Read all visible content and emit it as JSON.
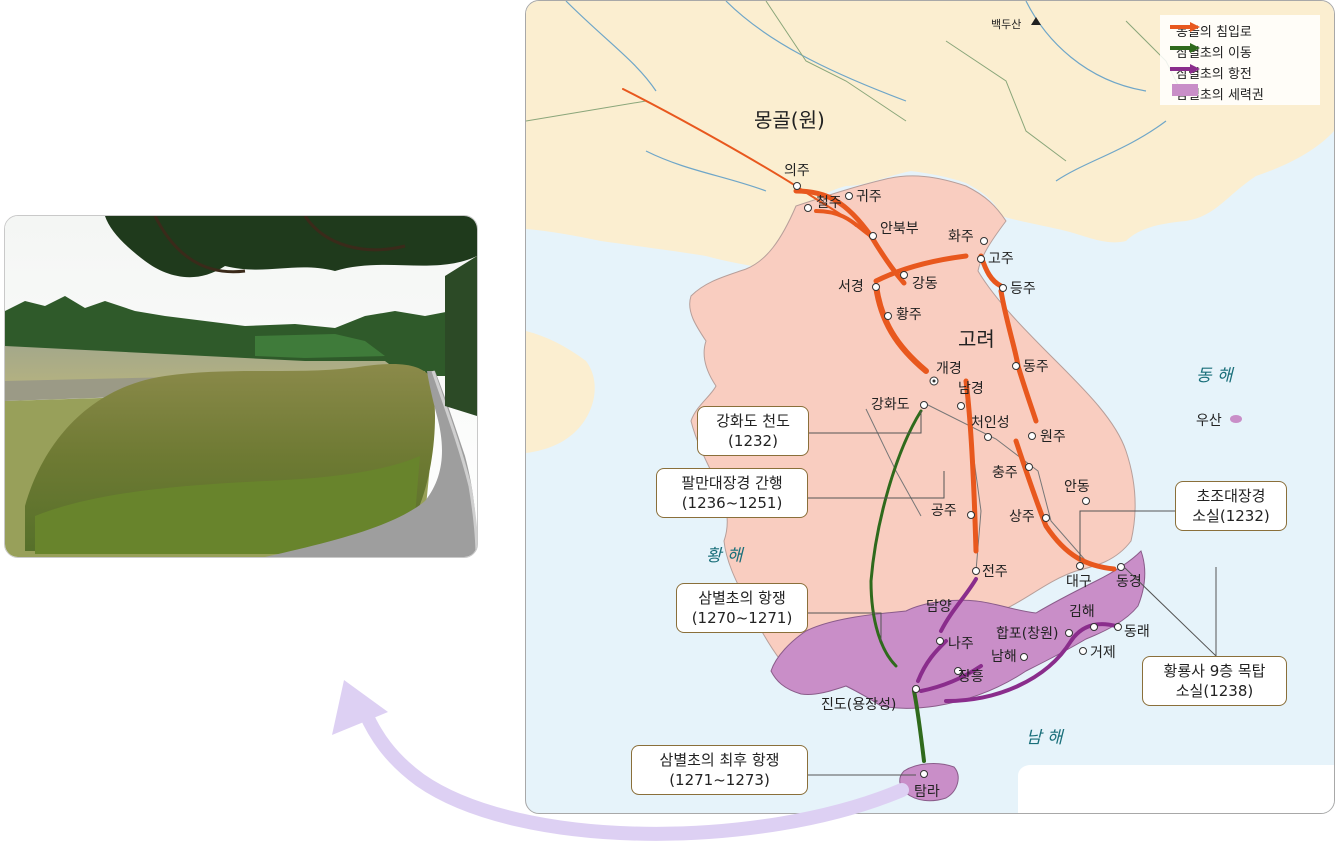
{
  "legend": {
    "items": [
      {
        "label": "몽골의 침입로",
        "color": "#e8581e"
      },
      {
        "label": "삼별초의 이동",
        "color": "#2f6a1c"
      },
      {
        "label": "삼별초의 항전",
        "color": "#8a2d8c"
      },
      {
        "label": "삼별초의 세력권",
        "color": "#c98ec8"
      }
    ]
  },
  "regions": {
    "mongol": "몽골(원)",
    "goryeo": "고려",
    "east_sea": "동 해",
    "yellow_sea": "황 해",
    "south_sea": "남 해",
    "baekdusan": "백두산"
  },
  "places": {
    "uiju": "의주",
    "cheolju": "철주",
    "gwiju": "귀주",
    "anbukbu": "안북부",
    "hwaju": "화주",
    "goju": "고주",
    "gangdong": "강동",
    "seogyeong": "서경",
    "deungju": "등주",
    "hwangju": "황주",
    "gaegyeong": "개경",
    "ganghwado": "강화도",
    "namgyeong": "남경",
    "dongju": "동주",
    "cheoninseong": "처인성",
    "wonju": "원주",
    "chungju": "충주",
    "andong": "안동",
    "gongju": "공주",
    "sangju": "상주",
    "daegu": "대구",
    "donggyeong": "동경",
    "jeonju": "전주",
    "damyang": "담양",
    "naju": "나주",
    "jangheung": "장흥",
    "jindo": "진도(용장성)",
    "tamra": "탐라",
    "happo": "합포(창원)",
    "gimhae": "김해",
    "dongnae": "동래",
    "namhae": "남해",
    "geoje": "거제",
    "usan": "우산"
  },
  "callouts": {
    "ganghwa": [
      "강화도 천도",
      "(1232)"
    ],
    "tripitaka": [
      "팔만대장경 간행",
      "(1236~1251)"
    ],
    "sambyeolcho": [
      "삼별초의 항쟁",
      "(1270~1271)"
    ],
    "last_resistance": [
      "삼별초의 최후 항쟁",
      "(1271~1273)"
    ],
    "chojo": [
      "초조대장경",
      "소실(1232)"
    ],
    "hwangnyongsa": [
      "황룡사 9층 목탑",
      "소실(1238)"
    ]
  }
}
